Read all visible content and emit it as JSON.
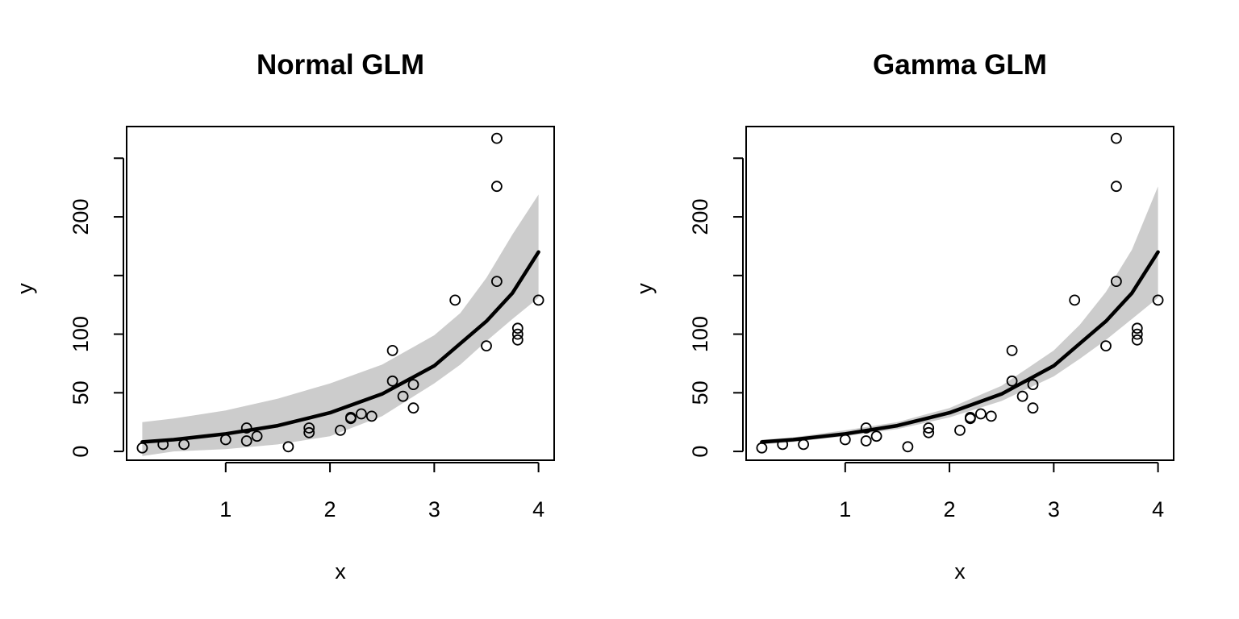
{
  "colors": {
    "band": "#cccccc",
    "line": "#000000",
    "points": "#000000"
  },
  "chart_data": [
    {
      "type": "scatter",
      "title": "Normal GLM",
      "xlabel": "x",
      "ylabel": "y",
      "xlim": [
        0.05,
        4.15
      ],
      "ylim": [
        -7.5,
        277
      ],
      "xticks": [
        1,
        2,
        3,
        4
      ],
      "yticks": [
        0,
        50,
        100,
        150,
        200,
        250
      ],
      "ytick_labels": [
        "0",
        "50",
        "100",
        "",
        "200",
        ""
      ],
      "grid": false,
      "points": [
        {
          "x": 0.2,
          "y": 3
        },
        {
          "x": 0.4,
          "y": 6
        },
        {
          "x": 0.6,
          "y": 6
        },
        {
          "x": 1.0,
          "y": 10
        },
        {
          "x": 1.2,
          "y": 20
        },
        {
          "x": 1.2,
          "y": 9
        },
        {
          "x": 1.3,
          "y": 13
        },
        {
          "x": 1.6,
          "y": 4
        },
        {
          "x": 1.8,
          "y": 20
        },
        {
          "x": 1.8,
          "y": 16
        },
        {
          "x": 2.1,
          "y": 18
        },
        {
          "x": 2.2,
          "y": 29
        },
        {
          "x": 2.2,
          "y": 28
        },
        {
          "x": 2.3,
          "y": 32
        },
        {
          "x": 2.4,
          "y": 30
        },
        {
          "x": 2.6,
          "y": 86
        },
        {
          "x": 2.6,
          "y": 60
        },
        {
          "x": 2.7,
          "y": 47
        },
        {
          "x": 2.8,
          "y": 57
        },
        {
          "x": 2.8,
          "y": 37
        },
        {
          "x": 3.2,
          "y": 129
        },
        {
          "x": 3.5,
          "y": 90
        },
        {
          "x": 3.6,
          "y": 267
        },
        {
          "x": 3.6,
          "y": 226
        },
        {
          "x": 3.6,
          "y": 145
        },
        {
          "x": 3.8,
          "y": 105
        },
        {
          "x": 3.8,
          "y": 100
        },
        {
          "x": 3.8,
          "y": 95
        },
        {
          "x": 4.0,
          "y": 129
        }
      ],
      "fit": {
        "x": [
          0.2,
          0.5,
          1.0,
          1.5,
          2.0,
          2.5,
          3.0,
          3.25,
          3.5,
          3.75,
          4.0
        ],
        "y": [
          8,
          10,
          15,
          22,
          33,
          49,
          73,
          92,
          111,
          135,
          170
        ],
        "lower": [
          -4,
          0,
          2,
          6,
          13,
          30,
          58,
          74,
          94,
          113,
          131
        ],
        "upper": [
          25,
          28,
          35,
          45,
          58,
          74,
          99,
          118,
          148,
          185,
          219
        ]
      }
    },
    {
      "type": "scatter",
      "title": "Gamma GLM",
      "xlabel": "x",
      "ylabel": "y",
      "xlim": [
        0.05,
        4.15
      ],
      "ylim": [
        -7.5,
        277
      ],
      "xticks": [
        1,
        2,
        3,
        4
      ],
      "yticks": [
        0,
        50,
        100,
        150,
        200,
        250
      ],
      "ytick_labels": [
        "0",
        "50",
        "100",
        "",
        "200",
        ""
      ],
      "grid": false,
      "points": [
        {
          "x": 0.2,
          "y": 3
        },
        {
          "x": 0.4,
          "y": 6
        },
        {
          "x": 0.6,
          "y": 6
        },
        {
          "x": 1.0,
          "y": 10
        },
        {
          "x": 1.2,
          "y": 20
        },
        {
          "x": 1.2,
          "y": 9
        },
        {
          "x": 1.3,
          "y": 13
        },
        {
          "x": 1.6,
          "y": 4
        },
        {
          "x": 1.8,
          "y": 20
        },
        {
          "x": 1.8,
          "y": 16
        },
        {
          "x": 2.1,
          "y": 18
        },
        {
          "x": 2.2,
          "y": 29
        },
        {
          "x": 2.2,
          "y": 28
        },
        {
          "x": 2.3,
          "y": 32
        },
        {
          "x": 2.4,
          "y": 30
        },
        {
          "x": 2.6,
          "y": 86
        },
        {
          "x": 2.6,
          "y": 60
        },
        {
          "x": 2.7,
          "y": 47
        },
        {
          "x": 2.8,
          "y": 57
        },
        {
          "x": 2.8,
          "y": 37
        },
        {
          "x": 3.2,
          "y": 129
        },
        {
          "x": 3.5,
          "y": 90
        },
        {
          "x": 3.6,
          "y": 267
        },
        {
          "x": 3.6,
          "y": 226
        },
        {
          "x": 3.6,
          "y": 145
        },
        {
          "x": 3.8,
          "y": 105
        },
        {
          "x": 3.8,
          "y": 100
        },
        {
          "x": 3.8,
          "y": 95
        },
        {
          "x": 4.0,
          "y": 129
        }
      ],
      "fit": {
        "x": [
          0.2,
          0.5,
          1.0,
          1.5,
          2.0,
          2.5,
          3.0,
          3.25,
          3.5,
          3.75,
          4.0
        ],
        "y": [
          8,
          10,
          15,
          22,
          33,
          49,
          73,
          92,
          111,
          135,
          170
        ],
        "lower": [
          6,
          8,
          13,
          19,
          29,
          43,
          64,
          79,
          95,
          113,
          131
        ],
        "upper": [
          10,
          12,
          18,
          25,
          37,
          56,
          86,
          108,
          136,
          172,
          226
        ]
      }
    }
  ]
}
